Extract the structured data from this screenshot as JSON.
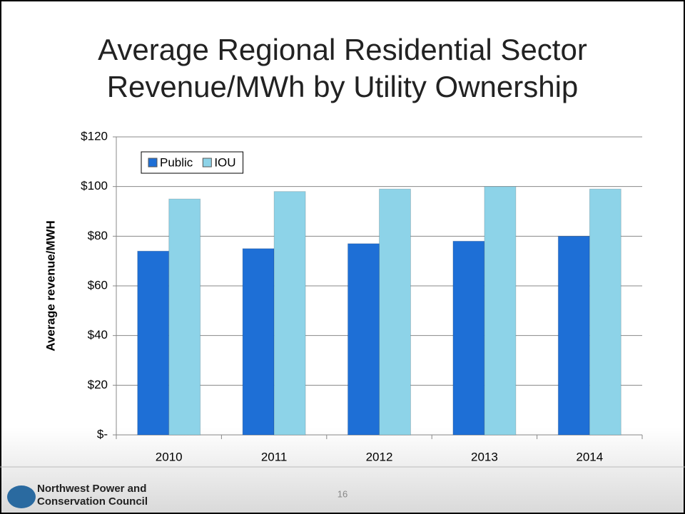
{
  "chart_data": {
    "type": "bar",
    "title": "Average Regional Residential Sector Revenue/MWh by Utility Ownership",
    "ylabel": "Average revenue/MWH",
    "categories": [
      "2010",
      "2011",
      "2012",
      "2013",
      "2014"
    ],
    "series": [
      {
        "name": "Public",
        "color": "#1e6fd6",
        "values": [
          74,
          75,
          77,
          78,
          80
        ]
      },
      {
        "name": "IOU",
        "color": "#8dd3e8",
        "values": [
          95,
          98,
          99,
          100,
          99
        ]
      }
    ],
    "ylim": [
      0,
      120
    ],
    "yticks": [
      {
        "value": 0,
        "label": "$-"
      },
      {
        "value": 20,
        "label": "$20"
      },
      {
        "value": 40,
        "label": "$40"
      },
      {
        "value": 60,
        "label": "$60"
      },
      {
        "value": 80,
        "label": "$80"
      },
      {
        "value": 100,
        "label": "$100"
      },
      {
        "value": 120,
        "label": "$120"
      }
    ],
    "grid": true,
    "legend": "upper left"
  },
  "footer": {
    "org_lines": [
      "Northwest Power and",
      "Conservation Council"
    ],
    "page_number": "16"
  }
}
